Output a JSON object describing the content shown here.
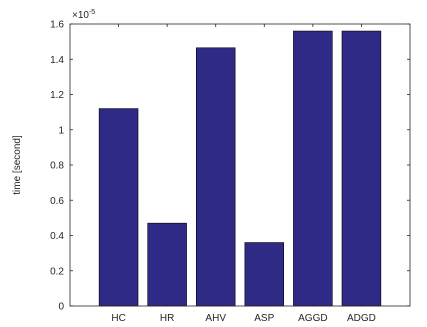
{
  "chart_data": {
    "type": "bar",
    "categories": [
      "HC",
      "HR",
      "AHV",
      "ASP",
      "AGGD",
      "ADGD"
    ],
    "values": [
      1.12,
      0.47,
      1.465,
      0.36,
      1.56,
      1.56
    ],
    "ylabel": "time [second]",
    "xlabel": "",
    "ylim": [
      0,
      1.6
    ],
    "yticks": [
      "0",
      "0.2",
      "0.4",
      "0.6",
      "0.8",
      "1",
      "1.2",
      "1.4",
      "1.6"
    ],
    "exponent_base": "×10",
    "exponent_power": "-5",
    "bar_color": "#2e2a86",
    "grid": false
  }
}
